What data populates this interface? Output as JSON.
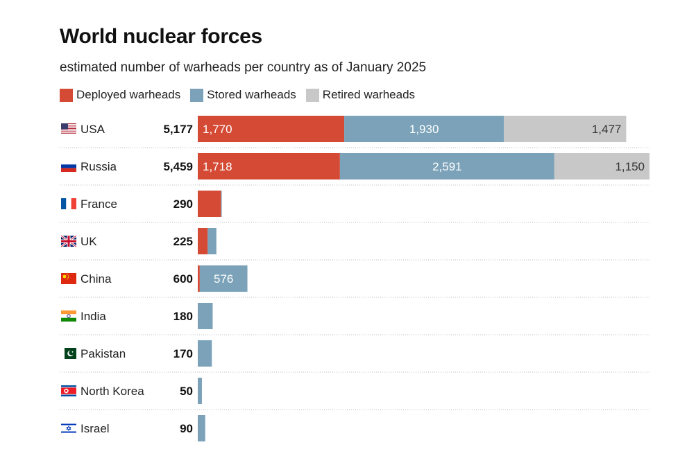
{
  "chart_data": {
    "type": "bar",
    "orientation": "horizontal",
    "stacked": true,
    "title": "World nuclear forces",
    "subtitle": "estimated number of warheads per country as of January 2025",
    "categories": [
      "USA",
      "Russia",
      "France",
      "UK",
      "China",
      "India",
      "Pakistan",
      "North Korea",
      "Israel"
    ],
    "totals": [
      5177,
      5459,
      290,
      225,
      600,
      180,
      170,
      50,
      90
    ],
    "totals_labels": [
      "5,177",
      "5,459",
      "290",
      "225",
      "600",
      "180",
      "170",
      "50",
      "90"
    ],
    "series": [
      {
        "name": "Deployed warheads",
        "color": "#d44a35",
        "values": [
          1770,
          1718,
          280,
          120,
          24,
          0,
          0,
          0,
          0
        ],
        "labels": [
          "1,770",
          "1,718",
          "",
          "",
          "",
          "",
          "",
          "",
          ""
        ]
      },
      {
        "name": "Stored warheads",
        "color": "#7ba2b8",
        "values": [
          1930,
          2591,
          10,
          105,
          576,
          180,
          170,
          50,
          90
        ],
        "labels": [
          "1,930",
          "2,591",
          "",
          "",
          "576",
          "",
          "",
          "",
          ""
        ]
      },
      {
        "name": "Retired warheads",
        "color": "#c8c8c8",
        "values": [
          1477,
          1150,
          0,
          0,
          0,
          0,
          0,
          0,
          0
        ],
        "labels": [
          "1,477",
          "1,150",
          "",
          "",
          "",
          "",
          "",
          "",
          ""
        ]
      }
    ],
    "xlim": [
      0,
      5459
    ],
    "legend_position": "top-left",
    "grid": false,
    "row_separators": "dotted"
  },
  "flags": [
    "flag-usa-icon",
    "flag-russia-icon",
    "flag-france-icon",
    "flag-uk-icon",
    "flag-china-icon",
    "flag-india-icon",
    "flag-pakistan-icon",
    "flag-north-korea-icon",
    "flag-israel-icon"
  ]
}
